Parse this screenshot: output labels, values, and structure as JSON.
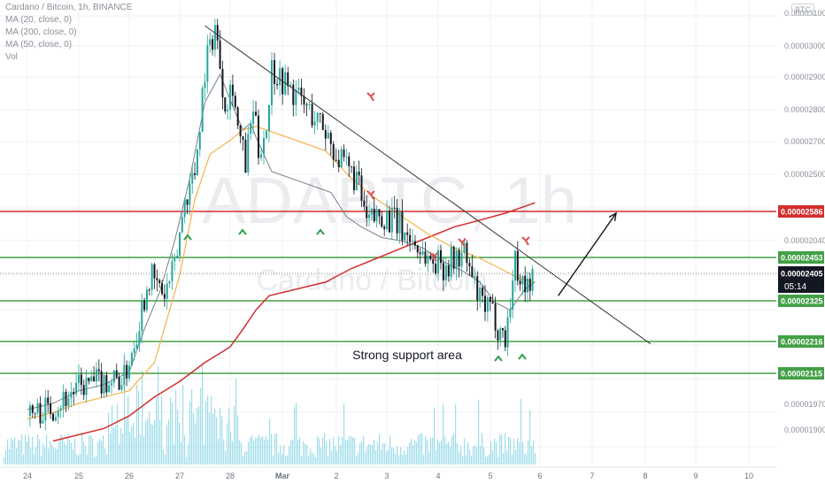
{
  "header": {
    "symbol_line": "Cardano / Bitcoin, 1h, BINANCE",
    "indicators": [
      "MA (20, close, 0)",
      "MA (200, close, 0)",
      "MA (50, close, 0)",
      "Vol"
    ],
    "currency_badge": "BTC"
  },
  "watermark": {
    "big": "ADABTC, 1h",
    "small": "Cardano / Bitcoin"
  },
  "countdown": "05:14",
  "annotation": {
    "support_text": "Strong support area"
  },
  "colors": {
    "background": "#ffffff",
    "bull": "#26a69a",
    "bear": "#131722",
    "resistance": "#d32f2f",
    "support": "#43a047",
    "ma20": "#7a7f8a",
    "ma50": "#f5b24a",
    "ma200": "#d32f2f",
    "trendline": "#333333",
    "current_price_bg": "#131722",
    "up_marker": "#2e9e4f",
    "down_marker": "#e05050",
    "volume": "#4fc3d9"
  },
  "chart_data": {
    "type": "candlestick",
    "symbol": "ADABTC",
    "interval": "1h",
    "exchange": "BINANCE",
    "y_axis_ticks": [
      "0.00003100",
      "0.00003000",
      "0.00002900",
      "0.00002800",
      "0.00002700",
      "0.00002500",
      "0.00002040",
      "0.00001970",
      "0.00001900"
    ],
    "x_axis_ticks": [
      "24",
      "25",
      "26",
      "27",
      "28",
      "Mar",
      "2",
      "3",
      "4",
      "5",
      "6",
      "7",
      "8",
      "9",
      "10"
    ],
    "ylim": [
      1.9e-05,
      3.15e-05
    ],
    "horizontal_levels": [
      {
        "price": 2.586e-05,
        "label": "0.00002586",
        "kind": "resistance"
      },
      {
        "price": 2.453e-05,
        "label": "0.00002453",
        "kind": "support"
      },
      {
        "price": 2.325e-05,
        "label": "0.00002325",
        "kind": "support"
      },
      {
        "price": 2.216e-05,
        "label": "0.00002216",
        "kind": "support"
      },
      {
        "price": 2.115e-05,
        "label": "0.00002115",
        "kind": "support"
      }
    ],
    "current_price": {
      "price": 2.405e-05,
      "label": "0.00002405"
    },
    "trendline": {
      "from": [
        27.5,
        3.12e-05
      ],
      "to": [
        8.1,
        2.21e-05
      ]
    },
    "projection_arrow": {
      "from": [
        6.35,
        2.34e-05
      ],
      "to": [
        7.45,
        2.58e-05
      ]
    },
    "up_markers": [
      27.15,
      28.2,
      1.75,
      5.1,
      5.5
    ],
    "down_markers": [
      2.7,
      2.7,
      4.5,
      5.45,
      5.8
    ],
    "ma20": [
      [
        24.0,
        2e-05
      ],
      [
        24.5,
        2.02e-05
      ],
      [
        25.0,
        2.06e-05
      ],
      [
        25.5,
        2.08e-05
      ],
      [
        26.0,
        2.12e-05
      ],
      [
        26.3,
        2.25e-05
      ],
      [
        26.6,
        2.35e-05
      ],
      [
        26.9,
        2.5e-05
      ],
      [
        27.2,
        2.68e-05
      ],
      [
        27.5,
        2.9e-05
      ],
      [
        27.8,
        2.98e-05
      ],
      [
        28.2,
        2.87e-05
      ],
      [
        28.5,
        2.82e-05
      ],
      [
        28.8,
        2.84e-05
      ],
      [
        29.0,
        2.8e-05
      ],
      [
        29.3,
        2.75e-05
      ],
      [
        29.6,
        2.7e-05
      ],
      [
        1.9,
        2.64e-05
      ],
      [
        2.2,
        2.57e-05
      ],
      [
        2.5,
        2.54e-05
      ],
      [
        2.9,
        2.51e-05
      ],
      [
        3.3,
        2.5e-05
      ],
      [
        3.7,
        2.48e-05
      ],
      [
        4.1,
        2.44e-05
      ],
      [
        4.5,
        2.41e-05
      ],
      [
        4.8,
        2.38e-05
      ],
      [
        5.1,
        2.32e-05
      ],
      [
        5.4,
        2.3e-05
      ],
      [
        5.7,
        2.36e-05
      ],
      [
        5.9,
        2.38e-05
      ]
    ],
    "ma50": [
      [
        24.0,
        1.97e-05
      ],
      [
        24.5,
        1.99e-05
      ],
      [
        25.0,
        2.02e-05
      ],
      [
        25.5,
        2.04e-05
      ],
      [
        26.0,
        2.06e-05
      ],
      [
        26.5,
        2.15e-05
      ],
      [
        27.0,
        2.4e-05
      ],
      [
        27.3,
        2.62e-05
      ],
      [
        27.6,
        2.75e-05
      ],
      [
        28.0,
        2.79e-05
      ],
      [
        28.5,
        2.82e-05
      ],
      [
        29.0,
        2.83e-05
      ],
      [
        29.4,
        2.82e-05
      ],
      [
        1.8,
        2.76e-05
      ],
      [
        2.3,
        2.68e-05
      ],
      [
        2.8,
        2.62e-05
      ],
      [
        3.3,
        2.57e-05
      ],
      [
        3.8,
        2.52e-05
      ],
      [
        4.3,
        2.48e-05
      ],
      [
        4.8,
        2.45e-05
      ],
      [
        5.2,
        2.42e-05
      ],
      [
        5.6,
        2.39e-05
      ],
      [
        5.9,
        2.38e-05
      ]
    ],
    "ma200": [
      [
        24.5,
        1.9e-05
      ],
      [
        25.0,
        1.92e-05
      ],
      [
        25.5,
        1.94e-05
      ],
      [
        26.0,
        1.98e-05
      ],
      [
        26.5,
        2.04e-05
      ],
      [
        27.0,
        2.09e-05
      ],
      [
        27.5,
        2.15e-05
      ],
      [
        28.0,
        2.2e-05
      ],
      [
        28.5,
        2.25e-05
      ],
      [
        29.0,
        2.3e-05
      ],
      [
        29.5,
        2.34e-05
      ],
      [
        1.8,
        2.38e-05
      ],
      [
        2.3,
        2.42e-05
      ],
      [
        2.8,
        2.45e-05
      ],
      [
        3.3,
        2.48e-05
      ],
      [
        3.8,
        2.51e-05
      ],
      [
        4.3,
        2.54e-05
      ],
      [
        4.8,
        2.56e-05
      ],
      [
        5.3,
        2.58e-05
      ],
      [
        5.9,
        2.61e-05
      ]
    ]
  }
}
